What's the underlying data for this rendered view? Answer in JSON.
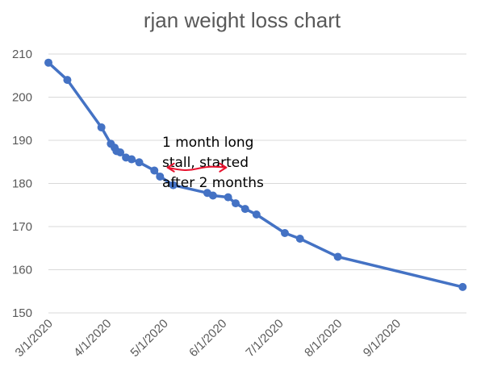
{
  "chart_data": {
    "type": "line",
    "title": "rjan weight loss chart",
    "xlabel": "",
    "ylabel": "",
    "x_axis": "date",
    "xlim": [
      "2020-03-01",
      "2020-10-08"
    ],
    "ylim": [
      150,
      210
    ],
    "yticks": [
      150,
      160,
      170,
      180,
      190,
      200,
      210
    ],
    "xticks": [
      {
        "date": "2020-03-01",
        "label": "3/1/2020"
      },
      {
        "date": "2020-04-01",
        "label": "4/1/2020"
      },
      {
        "date": "2020-05-01",
        "label": "5/1/2020"
      },
      {
        "date": "2020-06-01",
        "label": "6/1/2020"
      },
      {
        "date": "2020-07-01",
        "label": "7/1/2020"
      },
      {
        "date": "2020-08-01",
        "label": "8/1/2020"
      },
      {
        "date": "2020-09-01",
        "label": "9/1/2020"
      }
    ],
    "grid": true,
    "legend": "none",
    "series": [
      {
        "color": "#4472c4",
        "points": [
          {
            "x": "2020-03-01",
            "y": 208
          },
          {
            "x": "2020-03-11",
            "y": 204
          },
          {
            "x": "2020-03-29",
            "y": 193
          },
          {
            "x": "2020-04-03",
            "y": 189.2
          },
          {
            "x": "2020-04-05",
            "y": 188.3
          },
          {
            "x": "2020-04-06",
            "y": 187.5
          },
          {
            "x": "2020-04-08",
            "y": 187.2
          },
          {
            "x": "2020-04-11",
            "y": 186
          },
          {
            "x": "2020-04-14",
            "y": 185.6
          },
          {
            "x": "2020-04-18",
            "y": 184.9
          },
          {
            "x": "2020-04-26",
            "y": 183
          },
          {
            "x": "2020-04-29",
            "y": 181.6
          },
          {
            "x": "2020-05-06",
            "y": 179.6
          },
          {
            "x": "2020-05-24",
            "y": 177.8
          },
          {
            "x": "2020-05-27",
            "y": 177.2
          },
          {
            "x": "2020-06-04",
            "y": 176.8
          },
          {
            "x": "2020-06-08",
            "y": 175.4
          },
          {
            "x": "2020-06-13",
            "y": 174.1
          },
          {
            "x": "2020-06-19",
            "y": 172.8
          },
          {
            "x": "2020-07-04",
            "y": 168.5
          },
          {
            "x": "2020-07-12",
            "y": 167.2
          },
          {
            "x": "2020-08-01",
            "y": 163
          },
          {
            "x": "2020-10-06",
            "y": 156
          }
        ]
      }
    ],
    "annotations": [
      {
        "text_lines": [
          "1 month long",
          "stall, started",
          "after 2 months"
        ],
        "anchor": {
          "x": "2020-05-01",
          "y": 188.5
        }
      }
    ],
    "marker_arrow": {
      "from": {
        "x": "2020-05-03",
        "y": 183.5
      },
      "to": {
        "x": "2020-06-03",
        "y": 183.5
      },
      "color": "#e8112d"
    }
  }
}
